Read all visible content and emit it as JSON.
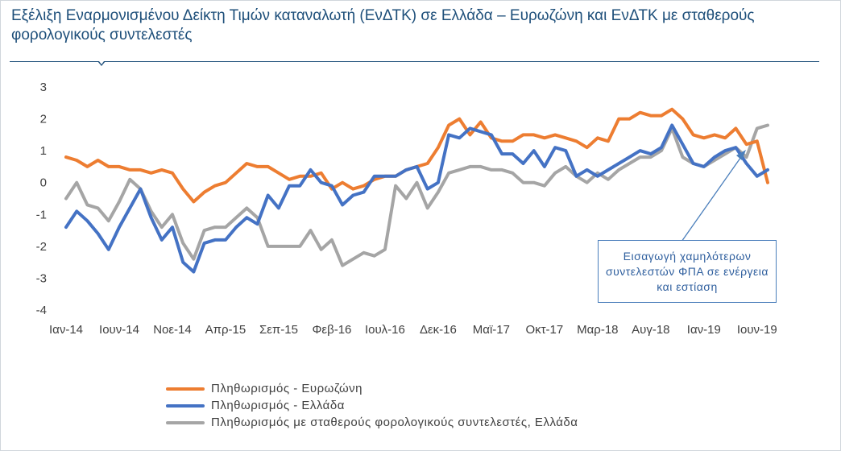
{
  "title": "Εξέλιξη Εναρμονισμένου Δείκτη Τιμών καταναλωτή (ΕνΔΤΚ) σε Ελλάδα – Ευρωζώνη και ΕνΔΤΚ με σταθερούς φορολογικούς συντελεστές",
  "annotation": "Εισαγωγή χαμηλότερων συντελεστών ΦΠΑ σε ενέργεια και εστίαση",
  "colors": {
    "eurozone": "#ed7d31",
    "greece": "#4472c4",
    "constant_tax": "#a5a5a5",
    "title": "#1e4f7a"
  },
  "chart_data": {
    "type": "line",
    "title": "Εξέλιξη Εναρμονισμένου Δείκτη Τιμών καταναλωτή (ΕνΔΤΚ) σε Ελλάδα – Ευρωζώνη και ΕνΔΤΚ με σταθερούς φορολογικούς συντελεστές",
    "xlabel": "",
    "ylabel": "",
    "ylim": [
      -4,
      3
    ],
    "yticks": [
      "3",
      "2",
      "1",
      "0",
      "-1",
      "-2",
      "-3",
      "-4"
    ],
    "grid": false,
    "legend_position": "bottom",
    "x_tick_labels": [
      "Ιαν-14",
      "Ιουν-14",
      "Νοε-14",
      "Απρ-15",
      "Σεπ-15",
      "Φεβ-16",
      "Ιουλ-16",
      "Δεκ-16",
      "Μαϊ-17",
      "Οκτ-17",
      "Μαρ-18",
      "Αυγ-18",
      "Ιαν-19",
      "Ιουν-19"
    ],
    "x": [
      "Ιαν-14",
      "Φεβ-14",
      "Μαρ-14",
      "Απρ-14",
      "Μαϊ-14",
      "Ιουν-14",
      "Ιουλ-14",
      "Αυγ-14",
      "Σεπ-14",
      "Οκτ-14",
      "Νοε-14",
      "Δεκ-14",
      "Ιαν-15",
      "Φεβ-15",
      "Μαρ-15",
      "Απρ-15",
      "Μαϊ-15",
      "Ιουν-15",
      "Ιουλ-15",
      "Αυγ-15",
      "Σεπ-15",
      "Οκτ-15",
      "Νοε-15",
      "Δεκ-15",
      "Ιαν-16",
      "Φεβ-16",
      "Μαρ-16",
      "Απρ-16",
      "Μαϊ-16",
      "Ιουν-16",
      "Ιουλ-16",
      "Αυγ-16",
      "Σεπ-16",
      "Οκτ-16",
      "Νοε-16",
      "Δεκ-16",
      "Ιαν-17",
      "Φεβ-17",
      "Μαρ-17",
      "Απρ-17",
      "Μαϊ-17",
      "Ιουν-17",
      "Ιουλ-17",
      "Αυγ-17",
      "Σεπ-17",
      "Οκτ-17",
      "Νοε-17",
      "Δεκ-17",
      "Ιαν-18",
      "Φεβ-18",
      "Μαρ-18",
      "Απρ-18",
      "Μαϊ-18",
      "Ιουν-18",
      "Ιουλ-18",
      "Αυγ-18",
      "Σεπ-18",
      "Οκτ-18",
      "Νοε-18",
      "Δεκ-18",
      "Ιαν-19",
      "Φεβ-19",
      "Μαρ-19",
      "Απρ-19",
      "Μαϊ-19",
      "Ιουν-19",
      "Ιουλ-19"
    ],
    "series": [
      {
        "name": "Πληθωρισμός - Ευρωζώνη",
        "key": "eurozone",
        "values": [
          0.8,
          0.7,
          0.5,
          0.7,
          0.5,
          0.5,
          0.4,
          0.4,
          0.3,
          0.4,
          0.3,
          -0.2,
          -0.6,
          -0.3,
          -0.1,
          0.0,
          0.3,
          0.6,
          0.5,
          0.5,
          0.3,
          0.1,
          0.2,
          0.2,
          0.3,
          -0.2,
          0.0,
          -0.2,
          -0.1,
          0.1,
          0.2,
          0.2,
          0.4,
          0.5,
          0.6,
          1.1,
          1.8,
          2.0,
          1.5,
          1.9,
          1.4,
          1.3,
          1.3,
          1.5,
          1.5,
          1.4,
          1.5,
          1.4,
          1.3,
          1.1,
          1.4,
          1.3,
          2.0,
          2.0,
          2.2,
          2.1,
          2.1,
          2.3,
          2.0,
          1.5,
          1.4,
          1.5,
          1.4,
          1.7,
          1.2,
          1.3,
          0.0
        ]
      },
      {
        "name": "Πληθωρισμός - Ελλάδα",
        "key": "greece",
        "values": [
          -1.4,
          -0.9,
          -1.2,
          -1.6,
          -2.1,
          -1.4,
          -0.8,
          -0.2,
          -1.1,
          -1.8,
          -1.4,
          -2.5,
          -2.8,
          -1.9,
          -1.8,
          -1.8,
          -1.4,
          -1.1,
          -1.3,
          -0.4,
          -0.8,
          -0.1,
          -0.1,
          0.4,
          0.0,
          -0.1,
          -0.7,
          -0.4,
          -0.3,
          0.2,
          0.2,
          0.2,
          0.4,
          0.5,
          -0.2,
          0.0,
          1.5,
          1.4,
          1.7,
          1.6,
          1.5,
          0.9,
          0.9,
          0.6,
          1.0,
          0.5,
          1.1,
          1.0,
          0.2,
          0.4,
          0.2,
          0.4,
          0.6,
          0.8,
          1.0,
          0.9,
          1.1,
          1.8,
          1.2,
          0.6,
          0.5,
          0.8,
          1.0,
          1.1,
          0.6,
          0.2,
          0.4
        ]
      },
      {
        "name": "Πληθωρισμός με σταθερούς φορολογικούς συντελεστές,  Ελλάδα",
        "key": "constant_tax",
        "values": [
          -0.5,
          0.0,
          -0.7,
          -0.8,
          -1.2,
          -0.6,
          0.1,
          -0.2,
          -0.9,
          -1.4,
          -1.0,
          -1.9,
          -2.4,
          -1.5,
          -1.4,
          -1.4,
          -1.1,
          -0.8,
          -1.1,
          -2.0,
          -2.0,
          -2.0,
          -2.0,
          -1.5,
          -2.1,
          -1.8,
          -2.6,
          -2.4,
          -2.2,
          -2.3,
          -2.1,
          -0.1,
          -0.5,
          0.0,
          -0.8,
          -0.3,
          0.3,
          0.4,
          0.5,
          0.5,
          0.4,
          0.4,
          0.3,
          0.0,
          0.0,
          -0.1,
          0.3,
          0.5,
          0.2,
          0.0,
          0.3,
          0.1,
          0.4,
          0.6,
          0.8,
          0.8,
          1.0,
          1.7,
          0.8,
          0.6,
          0.5,
          0.7,
          0.9,
          1.1,
          0.8,
          1.7,
          1.8
        ]
      }
    ]
  }
}
